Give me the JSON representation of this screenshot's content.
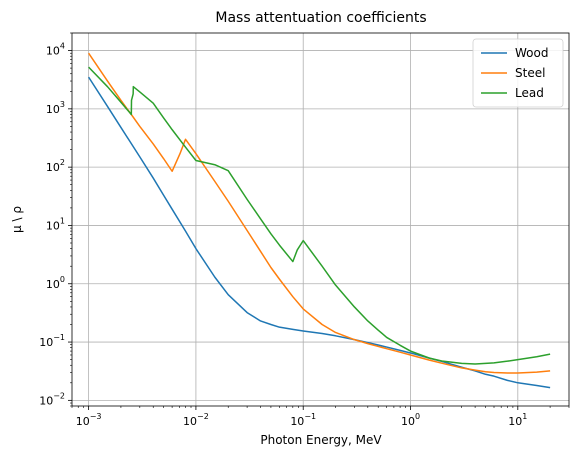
{
  "chart_data": {
    "type": "line",
    "title": "Mass attentuation coefficients",
    "xlabel": "Photon Energy, MeV",
    "ylabel": "μ \\ ρ",
    "xscale": "log",
    "yscale": "log",
    "xlim": [
      0.0007,
      30
    ],
    "ylim": [
      0.008,
      20000
    ],
    "grid": true,
    "legend_position": "top-right",
    "x_ticks": [
      {
        "base": "10",
        "exp": "−3",
        "value": 0.001
      },
      {
        "base": "10",
        "exp": "−2",
        "value": 0.01
      },
      {
        "base": "10",
        "exp": "−1",
        "value": 0.1
      },
      {
        "base": "10",
        "exp": "0",
        "value": 1
      },
      {
        "base": "10",
        "exp": "1",
        "value": 10
      }
    ],
    "y_ticks": [
      {
        "base": "10",
        "exp": "−2",
        "value": 0.01
      },
      {
        "base": "10",
        "exp": "−1",
        "value": 0.1
      },
      {
        "base": "10",
        "exp": "0",
        "value": 1
      },
      {
        "base": "10",
        "exp": "1",
        "value": 10
      },
      {
        "base": "10",
        "exp": "2",
        "value": 100
      },
      {
        "base": "10",
        "exp": "3",
        "value": 1000
      },
      {
        "base": "10",
        "exp": "4",
        "value": 10000
      }
    ],
    "series": [
      {
        "name": "Wood",
        "color": "#1f77b4",
        "points": [
          [
            0.001,
            3500
          ],
          [
            0.0015,
            1100
          ],
          [
            0.002,
            480
          ],
          [
            0.003,
            150
          ],
          [
            0.004,
            65
          ],
          [
            0.005,
            33
          ],
          [
            0.006,
            19
          ],
          [
            0.008,
            8
          ],
          [
            0.01,
            4
          ],
          [
            0.015,
            1.3
          ],
          [
            0.02,
            0.65
          ],
          [
            0.03,
            0.32
          ],
          [
            0.04,
            0.23
          ],
          [
            0.05,
            0.2
          ],
          [
            0.06,
            0.18
          ],
          [
            0.08,
            0.165
          ],
          [
            0.1,
            0.155
          ],
          [
            0.15,
            0.14
          ],
          [
            0.2,
            0.128
          ],
          [
            0.3,
            0.11
          ],
          [
            0.4,
            0.098
          ],
          [
            0.5,
            0.089
          ],
          [
            0.6,
            0.082
          ],
          [
            0.8,
            0.072
          ],
          [
            1,
            0.065
          ],
          [
            1.5,
            0.053
          ],
          [
            2,
            0.046
          ],
          [
            3,
            0.037
          ],
          [
            4,
            0.032
          ],
          [
            5,
            0.028
          ],
          [
            6,
            0.026
          ],
          [
            8,
            0.022
          ],
          [
            10,
            0.02
          ],
          [
            15,
            0.018
          ],
          [
            20,
            0.0165
          ]
        ]
      },
      {
        "name": "Steel",
        "color": "#ff7f0e",
        "points": [
          [
            0.001,
            9000
          ],
          [
            0.0015,
            3000
          ],
          [
            0.002,
            1400
          ],
          [
            0.0025,
            800
          ],
          [
            0.003,
            500
          ],
          [
            0.004,
            250
          ],
          [
            0.005,
            140
          ],
          [
            0.006,
            85
          ],
          [
            0.0071,
            170
          ],
          [
            0.008,
            300
          ],
          [
            0.01,
            170
          ],
          [
            0.015,
            57
          ],
          [
            0.02,
            26
          ],
          [
            0.03,
            8.2
          ],
          [
            0.04,
            3.6
          ],
          [
            0.05,
            1.9
          ],
          [
            0.06,
            1.2
          ],
          [
            0.08,
            0.6
          ],
          [
            0.1,
            0.37
          ],
          [
            0.15,
            0.2
          ],
          [
            0.2,
            0.146
          ],
          [
            0.3,
            0.11
          ],
          [
            0.4,
            0.094
          ],
          [
            0.5,
            0.084
          ],
          [
            0.6,
            0.077
          ],
          [
            0.8,
            0.067
          ],
          [
            1,
            0.06
          ],
          [
            1.5,
            0.049
          ],
          [
            2,
            0.043
          ],
          [
            3,
            0.036
          ],
          [
            4,
            0.033
          ],
          [
            5,
            0.031
          ],
          [
            6,
            0.03
          ],
          [
            8,
            0.0295
          ],
          [
            10,
            0.0295
          ],
          [
            15,
            0.0305
          ],
          [
            20,
            0.032
          ]
        ]
      },
      {
        "name": "Lead",
        "color": "#2ca02c",
        "points": [
          [
            0.001,
            5200
          ],
          [
            0.0015,
            2400
          ],
          [
            0.002,
            1300
          ],
          [
            0.0025,
            800
          ],
          [
            0.00251,
            1400
          ],
          [
            0.0026,
            1800
          ],
          [
            0.00261,
            2400
          ],
          [
            0.003,
            1950
          ],
          [
            0.004,
            1250
          ],
          [
            0.005,
            700
          ],
          [
            0.006,
            440
          ],
          [
            0.008,
            220
          ],
          [
            0.01,
            130
          ],
          [
            0.015,
            110
          ],
          [
            0.02,
            87
          ],
          [
            0.03,
            28
          ],
          [
            0.04,
            13
          ],
          [
            0.05,
            7.2
          ],
          [
            0.06,
            4.6
          ],
          [
            0.08,
            2.4
          ],
          [
            0.088,
            3.8
          ],
          [
            0.1,
            5.5
          ],
          [
            0.15,
            2.0
          ],
          [
            0.2,
            0.95
          ],
          [
            0.3,
            0.4
          ],
          [
            0.4,
            0.23
          ],
          [
            0.5,
            0.16
          ],
          [
            0.6,
            0.12
          ],
          [
            0.8,
            0.088
          ],
          [
            1,
            0.07
          ],
          [
            1.5,
            0.053
          ],
          [
            2,
            0.047
          ],
          [
            3,
            0.043
          ],
          [
            4,
            0.042
          ],
          [
            5,
            0.043
          ],
          [
            6,
            0.044
          ],
          [
            8,
            0.047
          ],
          [
            10,
            0.05
          ],
          [
            15,
            0.056
          ],
          [
            20,
            0.062
          ]
        ]
      }
    ]
  }
}
